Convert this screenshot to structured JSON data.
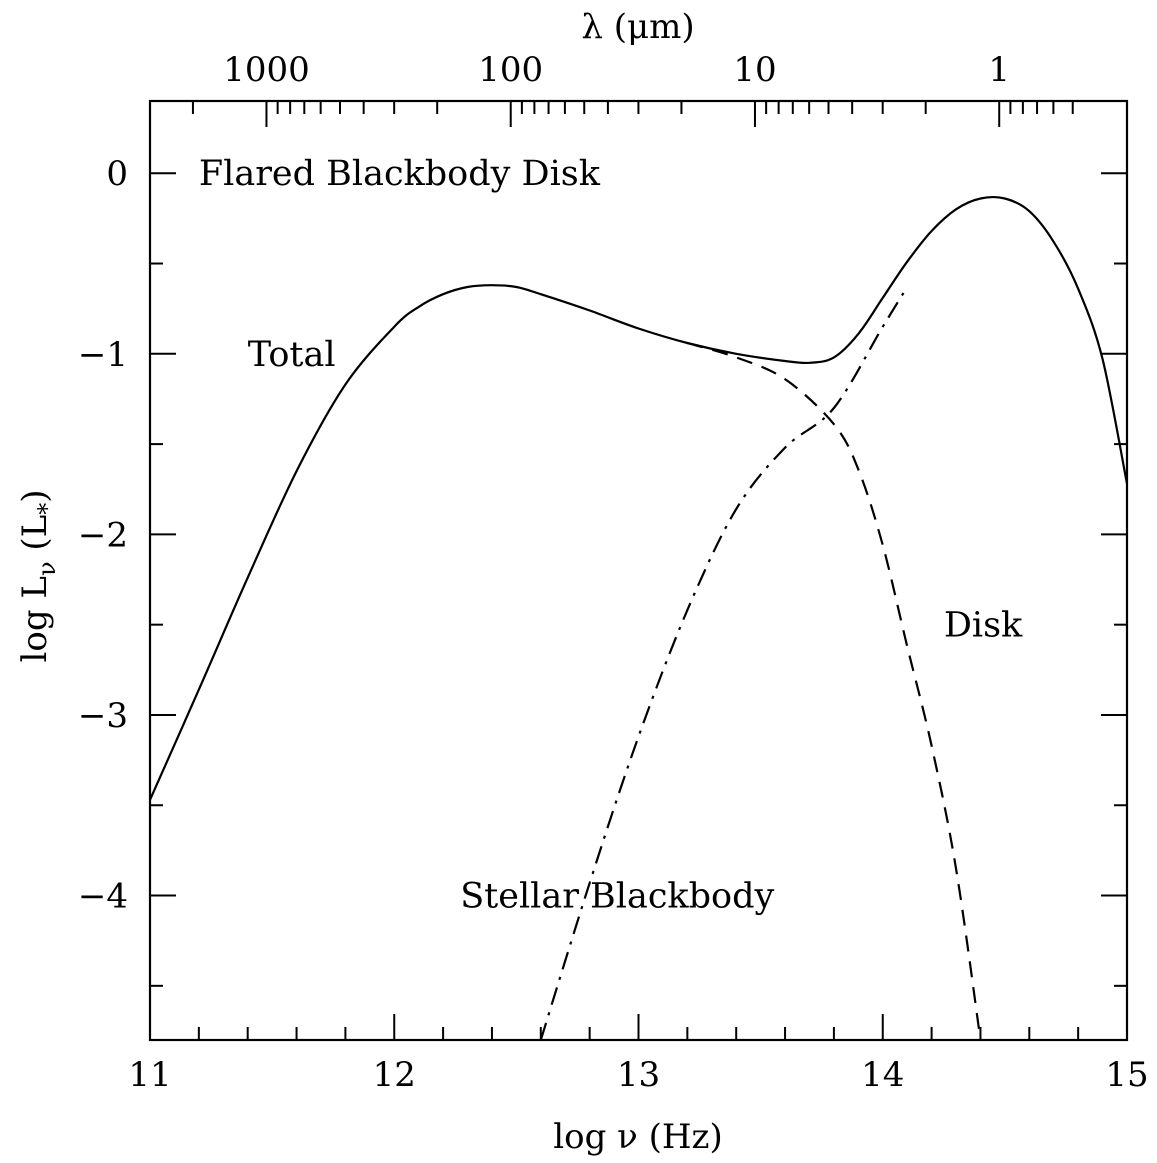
{
  "chart_data": {
    "type": "line",
    "title": "",
    "xlabel": "log ν (Hz)",
    "ylabel_parts": {
      "main": "log L",
      "sub": "ν",
      "paren": " (L",
      "paren_sub": "*",
      "close": ")"
    },
    "top_axis_label": "λ (μm)",
    "xlim": [
      11,
      15
    ],
    "ylim": [
      -4.8,
      0.4
    ],
    "x_ticks": [
      "11",
      "12",
      "13",
      "14",
      "15"
    ],
    "y_ticks": [
      "0",
      "−1",
      "−2",
      "−3",
      "−4"
    ],
    "top_ticks": [
      {
        "label": "1000",
        "lambda_um": 1000
      },
      {
        "label": "100",
        "lambda_um": 100
      },
      {
        "label": "10",
        "lambda_um": 10
      },
      {
        "label": "1",
        "lambda_um": 1
      }
    ],
    "annotations": [
      {
        "text": "Flared Blackbody Disk",
        "x": 11.2,
        "y": 0.0
      },
      {
        "text": "Total",
        "x": 11.4,
        "y": -1.0
      },
      {
        "text": "Disk",
        "x": 14.25,
        "y": -2.5
      },
      {
        "text": "Stellar Blackbody",
        "x": 12.27,
        "y": -4.0
      }
    ],
    "series": [
      {
        "style": "solid",
        "x": [
          11.0,
          11.2,
          11.4,
          11.6,
          11.8,
          12.0,
          12.1,
          12.2,
          12.3,
          12.4,
          12.5,
          12.6,
          12.8,
          13.0,
          13.2,
          13.4,
          13.6,
          13.7,
          13.8,
          13.9,
          14.0,
          14.1,
          14.2,
          14.3,
          14.4,
          14.5,
          14.6,
          14.7,
          14.8,
          14.9,
          15.0
        ],
        "y": [
          -3.47,
          -2.86,
          -2.24,
          -1.65,
          -1.17,
          -0.85,
          -0.74,
          -0.67,
          -0.63,
          -0.62,
          -0.63,
          -0.67,
          -0.76,
          -0.86,
          -0.94,
          -1.0,
          -1.04,
          -1.05,
          -1.02,
          -0.89,
          -0.69,
          -0.49,
          -0.32,
          -0.2,
          -0.14,
          -0.14,
          -0.21,
          -0.38,
          -0.64,
          -1.03,
          -1.72
        ]
      },
      {
        "style": "dashed",
        "x": [
          13.2,
          13.4,
          13.6,
          13.8,
          13.9,
          14.0,
          14.1,
          14.2,
          14.3,
          14.4
        ],
        "y": [
          -0.94,
          -1.02,
          -1.14,
          -1.39,
          -1.64,
          -2.06,
          -2.62,
          -3.17,
          -3.85,
          -4.8
        ]
      },
      {
        "style": "dashdot",
        "x": [
          12.6,
          12.8,
          13.0,
          13.2,
          13.4,
          13.6,
          13.8,
          14.0,
          14.1
        ],
        "y": [
          -4.8,
          -3.93,
          -3.12,
          -2.42,
          -1.86,
          -1.52,
          -1.3,
          -0.85,
          -0.63
        ]
      }
    ]
  }
}
